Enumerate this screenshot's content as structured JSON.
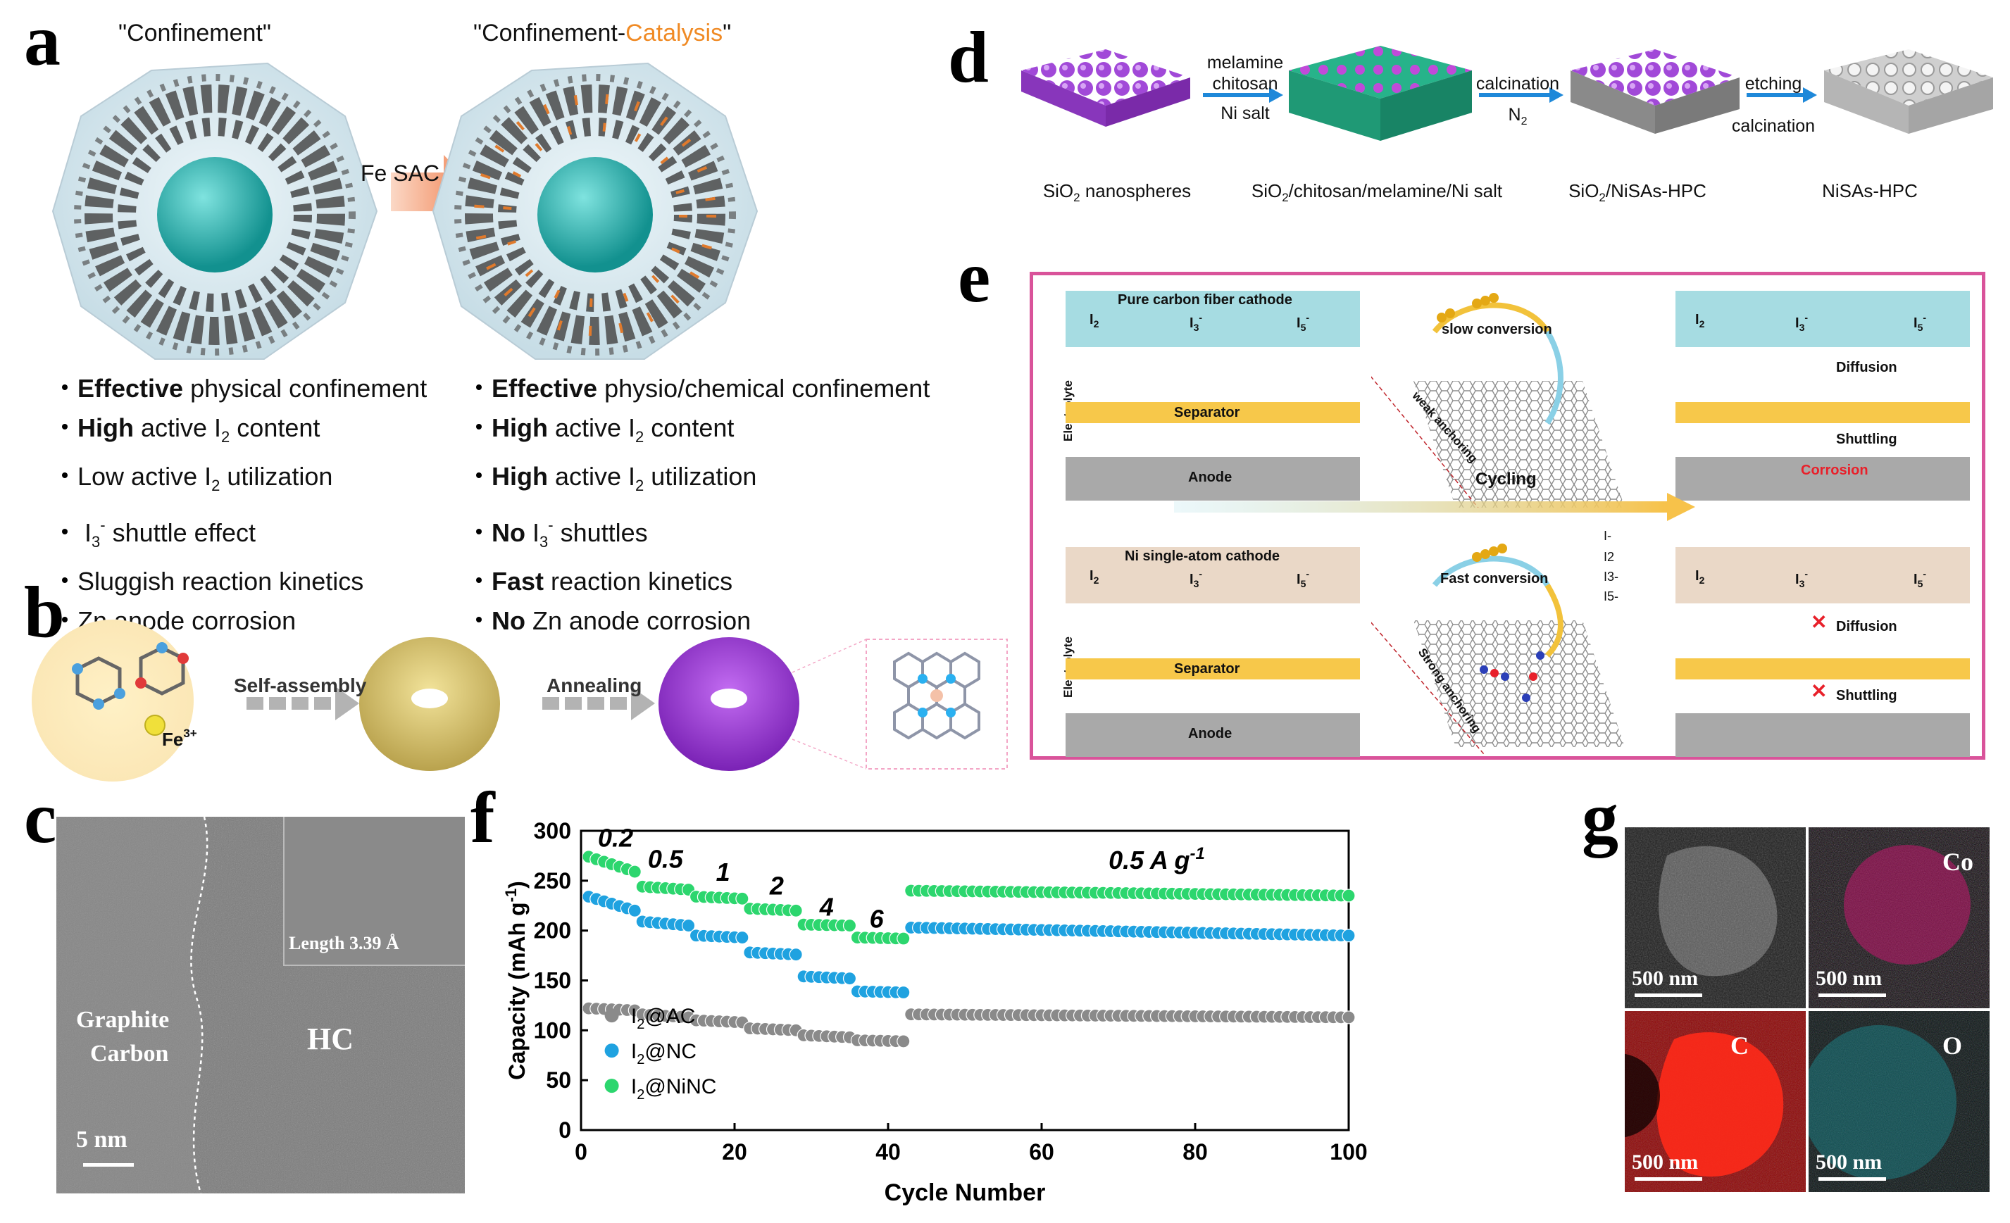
{
  "panel_labels": {
    "a": "a",
    "b": "b",
    "c": "c",
    "d": "d",
    "e": "e",
    "f": "f",
    "g": "g"
  },
  "panel_a": {
    "title_left": "\"Confinement\"",
    "title_right_prefix": "\"Confinement-",
    "title_right_highlight": "Catalysis",
    "title_right_suffix": "\"",
    "arrow_label": "Fe SAC",
    "left_bullets": [
      {
        "bold": "Effective",
        "rest": " physical confinement"
      },
      {
        "bold": "High",
        "rest": " active I",
        "sub": "2",
        "after": " content"
      },
      {
        "bold": "",
        "rest": "Low active I",
        "sub": "2",
        "after": " utilization"
      },
      {
        "bold": "",
        "rest": " I",
        "sub": "3",
        "sup": "-",
        "after": " shuttle effect"
      },
      {
        "bold": "",
        "rest": "Sluggish reaction kinetics"
      },
      {
        "bold": "",
        "rest": "Zn anode corrosion"
      }
    ],
    "right_bullets": [
      {
        "bold": "Effective",
        "rest": " physio/chemical confinement"
      },
      {
        "bold": "High",
        "rest": " active I",
        "sub": "2",
        "after": " content"
      },
      {
        "bold": "High",
        "rest": " active I",
        "sub": "2",
        "after": " utilization"
      },
      {
        "bold": "No",
        "rest": " I",
        "sub": "3",
        "sup": "-",
        "after": " shuttles"
      },
      {
        "bold": "Fast",
        "rest": " reaction kinetics"
      },
      {
        "bold": "No",
        "rest": " Zn anode corrosion"
      }
    ],
    "highlight_color": "#f08a24",
    "cluster_color": "#1fa9a8",
    "fe_color": "#e07a2c"
  },
  "panel_b": {
    "step1": "Self-assembly",
    "step2": "Annealing",
    "fe_label": "Fe",
    "fe_charge": "3+"
  },
  "panel_c": {
    "inset_label": "Length 3.39 Å",
    "graphite_line1": "Graphite",
    "graphite_line2": "Carbon",
    "hc_label": "HC",
    "scale": "5 nm"
  },
  "panel_d": {
    "arrow1_top1": "melamine",
    "arrow1_top2": "chitosan",
    "arrow1_bottom": "Ni salt",
    "arrow2_top": "calcination",
    "arrow2_bottom_main": "N",
    "arrow2_bottom_sub": "2",
    "arrow3_top": "etching",
    "arrow3_bottom": "calcination",
    "cap1_main": "SiO",
    "cap1_sub": "2",
    "cap1_rest": " nanospheres",
    "cap2_main": "SiO",
    "cap2_sub": "2",
    "cap2_rest": "/chitosan/melamine/Ni salt",
    "cap3_main": "SiO",
    "cap3_sub": "2",
    "cap3_rest": "/NiSAs-HPC",
    "cap4": "NiSAs-HPC"
  },
  "panel_e": {
    "top_cathode": "Pure carbon fiber cathode",
    "bottom_cathode": "Ni single-atom cathode",
    "electrolyte": "Electrolyte",
    "separator": "Separator",
    "anode": "Anode",
    "slow": "slow conversion",
    "fast": "Fast conversion",
    "weak": "weak anchoring",
    "strong": "Strong anchoring",
    "cycling": "Cycling",
    "diffusion": "Diffusion",
    "shuttling": "Shuttling",
    "corrosion": "Corrosion",
    "species_I2": "I",
    "species_I2_sub": "2",
    "species_I3": "I",
    "species_I3_sub": "3",
    "species_I3_sup": "-",
    "species_I5": "I",
    "species_I5_sub": "5",
    "species_I5_sup": "-",
    "legend_I_minus": "I-",
    "legend_items": [
      "I-",
      "I2",
      "I3-",
      "I5-"
    ],
    "corrosion_color": "#e8202a",
    "cathode_top_color": "#a6dce2",
    "cathode_bottom_color": "#ead8c7",
    "separator_color": "#f7c84a",
    "anode_color": "#a9a9a9"
  },
  "panel_g": {
    "co_label": "Co",
    "c_label": "C",
    "o_label": "O",
    "scale": "500 nm"
  },
  "chart_data": {
    "type": "scatter",
    "title": "",
    "xlabel": "Cycle Number",
    "ylabel_main": "Capacity (mAh g",
    "ylabel_sup": "-1",
    "ylabel_tail": ")",
    "xlim": [
      0,
      100
    ],
    "ylim": [
      0,
      300
    ],
    "xticks": [
      0,
      20,
      40,
      60,
      80,
      100
    ],
    "yticks": [
      0,
      50,
      100,
      150,
      200,
      250,
      300
    ],
    "rate_labels": [
      {
        "text": "0.2",
        "x": 4.5,
        "y": 284
      },
      {
        "text": "0.5",
        "x": 11,
        "y": 263
      },
      {
        "text": "1",
        "x": 18.5,
        "y": 250
      },
      {
        "text": "2",
        "x": 25.5,
        "y": 236
      },
      {
        "text": "4",
        "x": 32,
        "y": 215
      },
      {
        "text": "6",
        "x": 38.5,
        "y": 203
      },
      {
        "text": "0.5 A g",
        "sup": "-1",
        "x": 75,
        "y": 262
      }
    ],
    "legend": [
      "I2@AC",
      "I2@NC",
      "I2@NiNC"
    ],
    "series": [
      {
        "name": "I2@AC",
        "color": "#8a8a8a",
        "segments": [
          {
            "from": 1,
            "to": 7,
            "start": 122,
            "end": 120
          },
          {
            "from": 8,
            "to": 14,
            "start": 116,
            "end": 113
          },
          {
            "from": 15,
            "to": 21,
            "start": 110,
            "end": 108
          },
          {
            "from": 22,
            "to": 28,
            "start": 102,
            "end": 100
          },
          {
            "from": 29,
            "to": 35,
            "start": 95,
            "end": 93
          },
          {
            "from": 36,
            "to": 42,
            "start": 90,
            "end": 89
          },
          {
            "from": 43,
            "to": 100,
            "start": 116,
            "end": 113
          }
        ]
      },
      {
        "name": "I2@NC",
        "color": "#1fa2e0",
        "segments": [
          {
            "from": 1,
            "to": 7,
            "start": 234,
            "end": 220
          },
          {
            "from": 8,
            "to": 14,
            "start": 209,
            "end": 205
          },
          {
            "from": 15,
            "to": 21,
            "start": 195,
            "end": 193
          },
          {
            "from": 22,
            "to": 28,
            "start": 178,
            "end": 176
          },
          {
            "from": 29,
            "to": 35,
            "start": 154,
            "end": 152
          },
          {
            "from": 36,
            "to": 42,
            "start": 139,
            "end": 138
          },
          {
            "from": 43,
            "to": 100,
            "start": 203,
            "end": 195
          }
        ]
      },
      {
        "name": "I2@NiNC",
        "color": "#2cd66e",
        "segments": [
          {
            "from": 1,
            "to": 7,
            "start": 274,
            "end": 259
          },
          {
            "from": 8,
            "to": 14,
            "start": 244,
            "end": 241
          },
          {
            "from": 15,
            "to": 21,
            "start": 234,
            "end": 232
          },
          {
            "from": 22,
            "to": 28,
            "start": 222,
            "end": 220
          },
          {
            "from": 29,
            "to": 35,
            "start": 206,
            "end": 205
          },
          {
            "from": 36,
            "to": 42,
            "start": 193,
            "end": 192
          },
          {
            "from": 43,
            "to": 100,
            "start": 240,
            "end": 235
          }
        ]
      }
    ]
  }
}
